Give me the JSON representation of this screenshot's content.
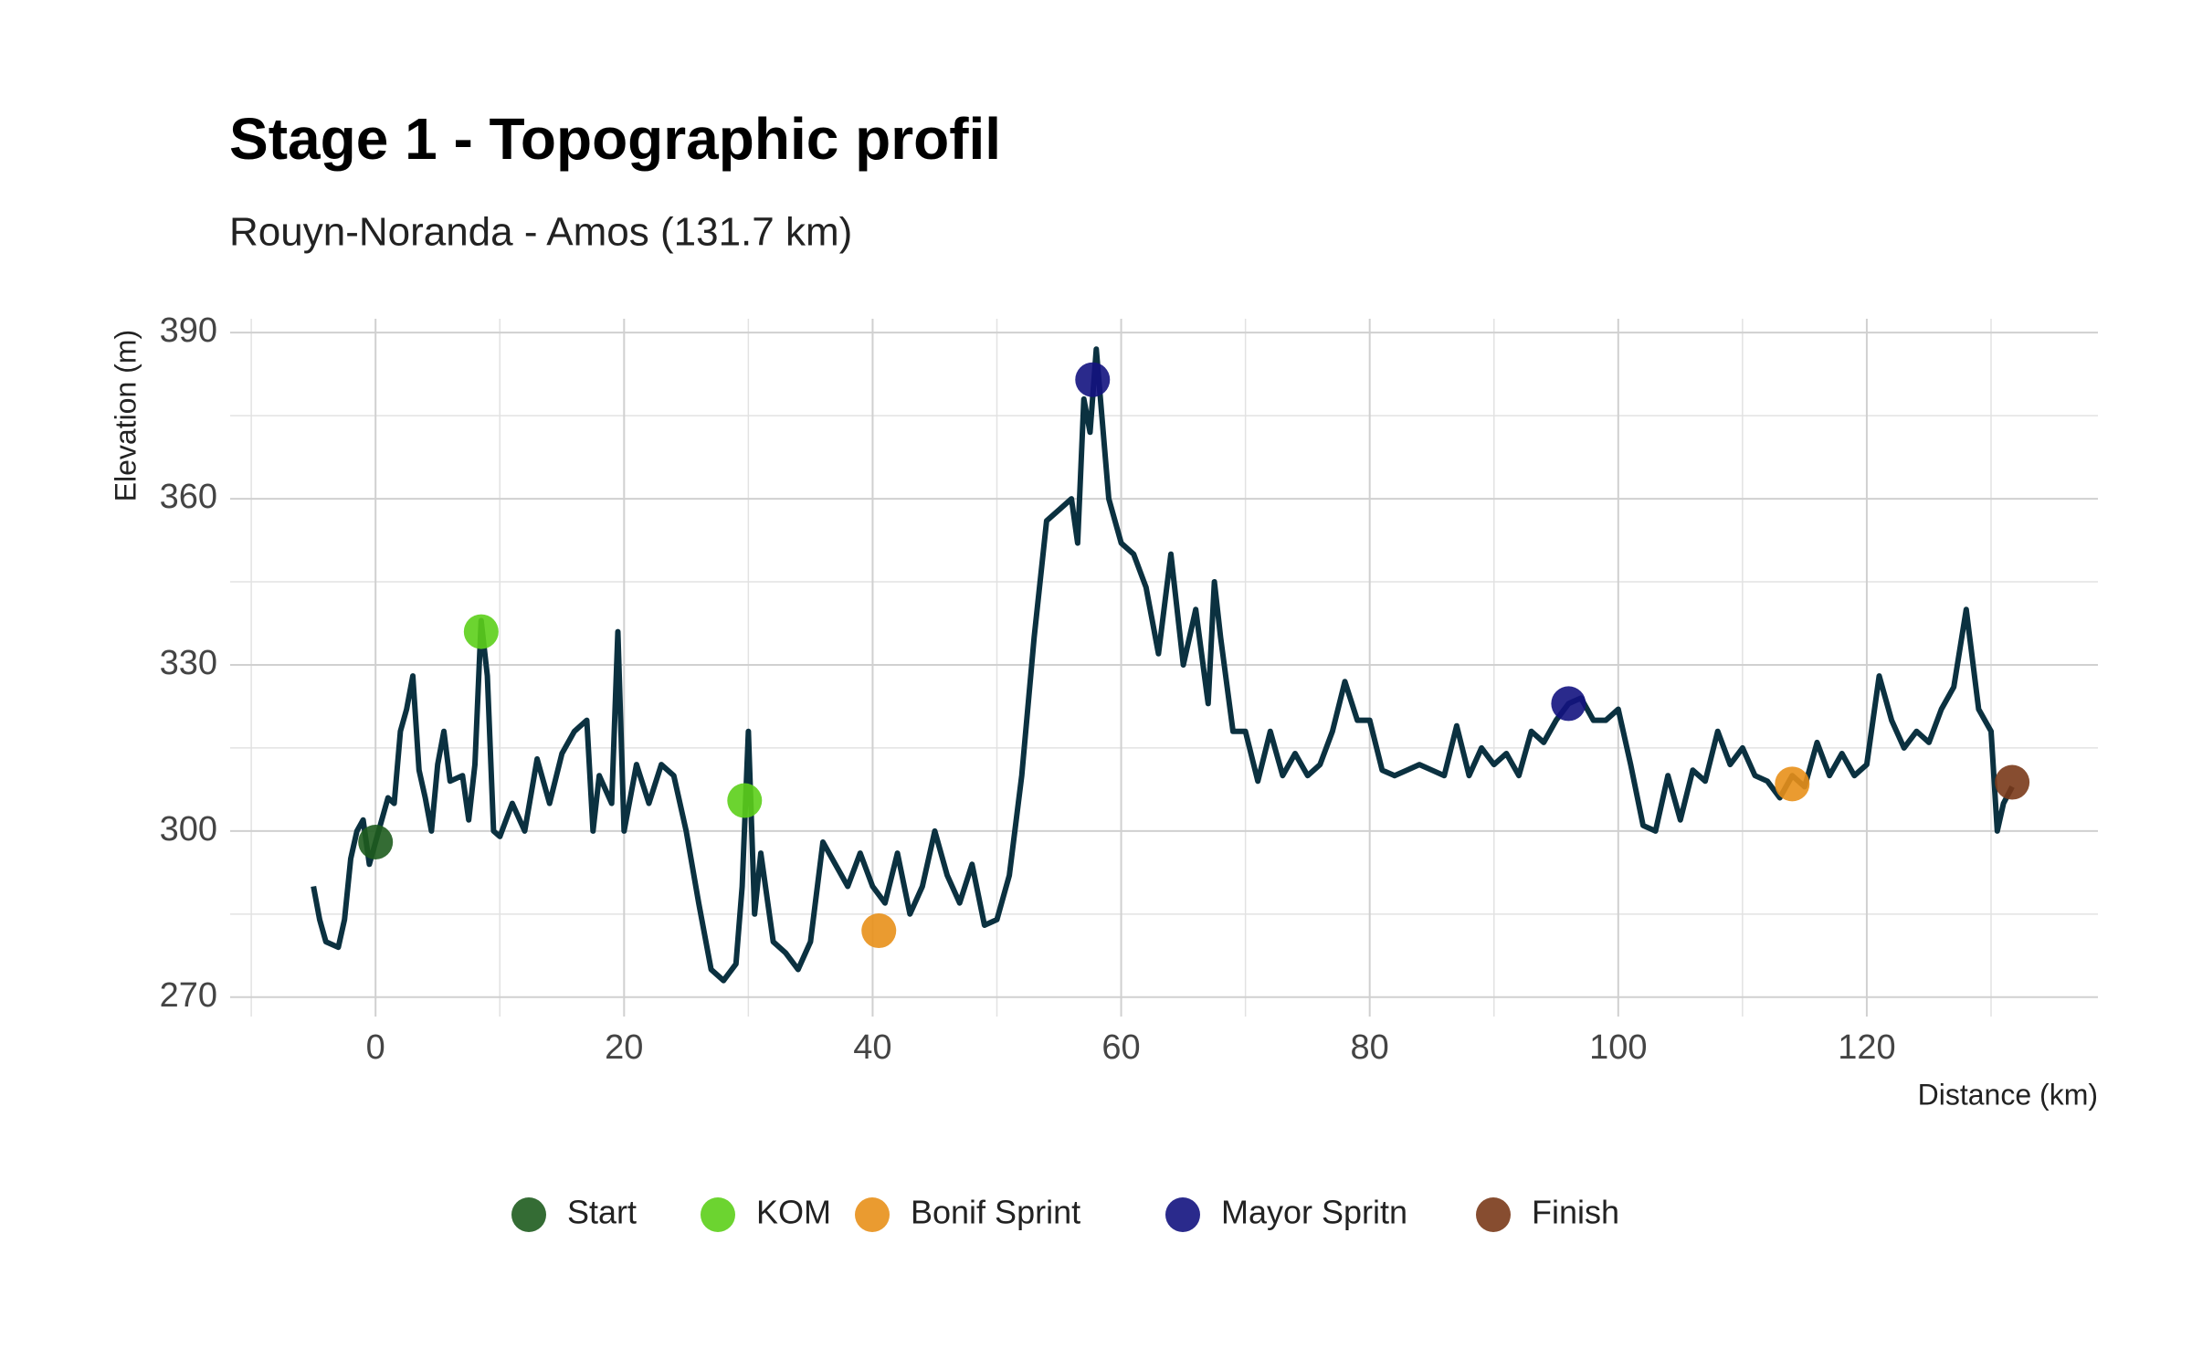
{
  "chart_data": {
    "type": "line",
    "title": "Stage 1 - Topographic profil",
    "subtitle": "Rouyn-Noranda - Amos (131.7 km)",
    "x_label": "Distance (km)",
    "y_label": "Elevation (m)",
    "line_color": "#0b3140",
    "grid": true,
    "legend": "bottom",
    "xlim": [
      -11.7,
      138.6
    ],
    "ylim": [
      266.5,
      392.5
    ],
    "xticks": [
      0,
      20,
      40,
      60,
      80,
      100,
      120
    ],
    "yticks": [
      270,
      300,
      330,
      360,
      390
    ],
    "x_minor_ticks": [
      -10,
      10,
      30,
      50,
      70,
      90,
      110,
      130
    ],
    "y_minor_ticks": [
      285,
      315,
      345,
      375
    ],
    "x": [
      -5,
      -4.5,
      -4,
      -3,
      -2.5,
      -2,
      -1.5,
      -1,
      -0.5,
      0,
      0.5,
      1,
      1.5,
      2,
      2.5,
      3,
      3.5,
      4,
      4.5,
      5,
      5.5,
      6,
      7,
      7.5,
      8,
      8.5,
      9,
      9.5,
      10,
      11,
      12,
      13,
      14,
      15,
      16,
      17,
      17.5,
      18,
      19,
      19.5,
      20,
      21,
      22,
      23,
      24,
      25,
      26,
      27,
      28,
      29,
      29.5,
      30,
      30.5,
      31,
      32,
      33,
      34,
      35,
      36,
      37,
      38,
      39,
      40,
      41,
      42,
      43,
      44,
      45,
      46,
      47,
      48,
      49,
      50,
      51,
      52,
      53,
      54,
      55,
      56,
      56.5,
      57,
      57.5,
      58,
      59,
      60,
      61,
      62,
      63,
      64,
      65,
      66,
      67,
      67.5,
      68,
      69,
      70,
      71,
      72,
      73,
      74,
      75,
      76,
      77,
      78,
      79,
      80,
      81,
      82,
      83,
      84,
      85,
      86,
      87,
      88,
      89,
      90,
      91,
      92,
      93,
      94,
      95,
      96,
      97,
      98,
      99,
      100,
      101,
      102,
      103,
      104,
      105,
      106,
      107,
      108,
      109,
      110,
      111,
      112,
      113,
      114,
      115,
      116,
      117,
      118,
      119,
      120,
      121,
      122,
      123,
      124,
      125,
      126,
      127,
      128,
      129,
      130,
      130.5,
      131,
      131.7
    ],
    "values": [
      290,
      284,
      280,
      279,
      284,
      295,
      300,
      302,
      294,
      298,
      302,
      306,
      305,
      318,
      322,
      328,
      311,
      306,
      300,
      312,
      318,
      309,
      310,
      302,
      312,
      338,
      328,
      300,
      299,
      305,
      300,
      313,
      305,
      314,
      318,
      320,
      300,
      310,
      305,
      336,
      300,
      312,
      305,
      312,
      310,
      300,
      287,
      275,
      273,
      276,
      290,
      318,
      285,
      296,
      280,
      278,
      275,
      280,
      298,
      294,
      290,
      296,
      290,
      287,
      296,
      285,
      290,
      300,
      292,
      287,
      294,
      283,
      284,
      292,
      310,
      335,
      356,
      358,
      360,
      352,
      378,
      372,
      387,
      360,
      352,
      350,
      344,
      332,
      350,
      330,
      340,
      323,
      345,
      335,
      318,
      318,
      309,
      318,
      310,
      314,
      310,
      312,
      318,
      327,
      320,
      320,
      311,
      310,
      311,
      312,
      311,
      310,
      319,
      310,
      315,
      312,
      314,
      310,
      318,
      316,
      320,
      323,
      324,
      320,
      320,
      322,
      312,
      301,
      300,
      310,
      302,
      311,
      309,
      318,
      312,
      315,
      310,
      309,
      306,
      310,
      308,
      316,
      310,
      314,
      310,
      312,
      328,
      320,
      315,
      318,
      316,
      322,
      326,
      340,
      322,
      318,
      300,
      305,
      308
    ],
    "points": [
      {
        "name": "Start",
        "color": "#1e5c1e",
        "x": [
          0
        ],
        "y": [
          298
        ]
      },
      {
        "name": "KOM",
        "color": "#5ccf1a",
        "x": [
          8.5,
          29.7
        ],
        "y": [
          336,
          305.5
        ]
      },
      {
        "name": "Bonif Sprint",
        "color": "#e8901a",
        "x": [
          40.5,
          114
        ],
        "y": [
          282,
          308.5
        ]
      },
      {
        "name": "Mayor Spritn",
        "color": "#13137f",
        "x": [
          57.7,
          96
        ],
        "y": [
          381.5,
          323
        ]
      },
      {
        "name": "Finish",
        "color": "#7a3a1a",
        "x": [
          131.7
        ],
        "y": [
          308.8
        ]
      }
    ]
  }
}
